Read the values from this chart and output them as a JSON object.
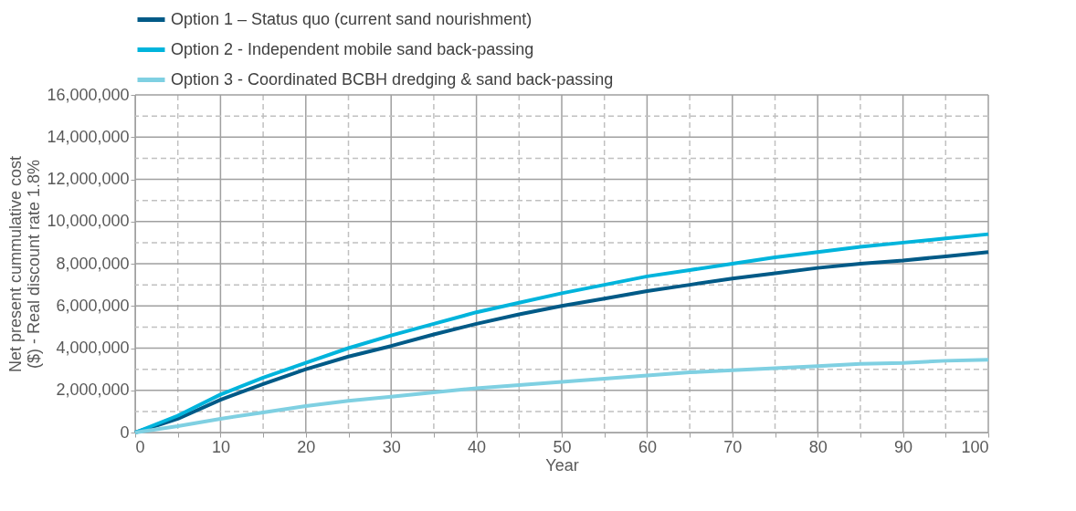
{
  "chart_data": {
    "type": "line",
    "xlabel": "Year",
    "ylabel": "Net present cummulative cost ($) - Real discount rate 1.8%",
    "x": [
      0,
      5,
      10,
      15,
      20,
      25,
      30,
      35,
      40,
      45,
      50,
      55,
      60,
      65,
      70,
      75,
      80,
      85,
      90,
      95,
      100
    ],
    "series": [
      {
        "name": "Option 1 – Status quo (current sand nourishment)",
        "color": "#005a87",
        "values": [
          0,
          650000,
          1550000,
          2300000,
          3000000,
          3600000,
          4100000,
          4650000,
          5150000,
          5600000,
          6000000,
          6350000,
          6700000,
          7000000,
          7300000,
          7550000,
          7800000,
          8000000,
          8150000,
          8350000,
          8550000
        ]
      },
      {
        "name": "Option 2 - Independent mobile sand back-passing",
        "color": "#00b4dc",
        "values": [
          0,
          800000,
          1800000,
          2600000,
          3300000,
          4000000,
          4600000,
          5150000,
          5700000,
          6150000,
          6600000,
          7000000,
          7400000,
          7700000,
          8000000,
          8300000,
          8550000,
          8800000,
          9000000,
          9200000,
          9400000
        ]
      },
      {
        "name": "Option 3 - Coordinated BCBH dredging & sand back-passing",
        "color": "#7fd0e2",
        "values": [
          0,
          300000,
          650000,
          950000,
          1250000,
          1500000,
          1700000,
          1900000,
          2100000,
          2250000,
          2400000,
          2550000,
          2700000,
          2850000,
          2950000,
          3050000,
          3150000,
          3250000,
          3300000,
          3400000,
          3450000
        ]
      }
    ],
    "xlim": [
      0,
      100
    ],
    "ylim": [
      0,
      16000000
    ],
    "xticks": [
      0,
      {
        "value": 5,
        "label": null
      },
      10,
      {
        "value": 15,
        "label": null
      },
      20,
      {
        "value": 25,
        "label": null
      },
      30,
      {
        "value": 35,
        "label": null
      },
      40,
      {
        "value": 45,
        "label": null
      },
      50,
      {
        "value": 55,
        "label": null
      },
      60,
      {
        "value": 65,
        "label": null
      },
      70,
      {
        "value": 75,
        "label": null
      },
      80,
      {
        "value": 85,
        "label": null
      },
      90,
      {
        "value": 95,
        "label": null
      },
      100
    ],
    "yticks": [
      {
        "value": 0,
        "label": "0"
      },
      {
        "value": 1000000,
        "label": null
      },
      {
        "value": 2000000,
        "label": "2,000,000"
      },
      {
        "value": 3000000,
        "label": null
      },
      {
        "value": 4000000,
        "label": "4,000,000"
      },
      {
        "value": 5000000,
        "label": null
      },
      {
        "value": 6000000,
        "label": "6,000,000"
      },
      {
        "value": 7000000,
        "label": null
      },
      {
        "value": 8000000,
        "label": "8,000,000"
      },
      {
        "value": 9000000,
        "label": null
      },
      {
        "value": 10000000,
        "label": "10,000,000"
      },
      {
        "value": 11000000,
        "label": null
      },
      {
        "value": 12000000,
        "label": "12,000,000"
      },
      {
        "value": 13000000,
        "label": null
      },
      {
        "value": 14000000,
        "label": "14,000,000"
      },
      {
        "value": 15000000,
        "label": null
      },
      {
        "value": 16000000,
        "label": "16,000,000"
      }
    ],
    "grid": true,
    "legend": "top",
    "marker": "none",
    "line_style": "solid"
  }
}
